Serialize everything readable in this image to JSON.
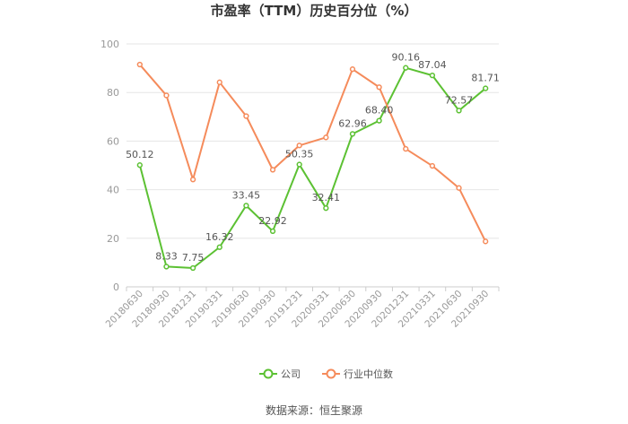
{
  "chart_data": {
    "type": "line",
    "title": "市盈率（TTM）历史百分位（%）",
    "source": "数据来源：恒生聚源",
    "categories": [
      "20180630",
      "20180930",
      "20181231",
      "20190331",
      "20190630",
      "20190930",
      "20191231",
      "20200331",
      "20200630",
      "20200930",
      "20201231",
      "20210331",
      "20210630",
      "20210930"
    ],
    "ylim": [
      0,
      100
    ],
    "yticks": [
      0,
      20,
      40,
      60,
      80,
      100
    ],
    "grid": true,
    "legend_position": "bottom",
    "series": [
      {
        "name": "公司",
        "color": "#5cc133",
        "values": [
          50.12,
          8.33,
          7.75,
          16.32,
          33.45,
          22.92,
          50.35,
          32.41,
          62.96,
          68.4,
          90.16,
          87.04,
          72.57,
          81.71
        ],
        "labels": [
          "50.12",
          "8.33",
          "7.75",
          "16.32",
          "33.45",
          "22.92",
          "50.35",
          "32.41",
          "62.96",
          "68.40",
          "90.16",
          "87.04",
          "72.57",
          "81.71"
        ]
      },
      {
        "name": "行业中位数",
        "color": "#f58b5b",
        "values": [
          91.5,
          78.8,
          44.2,
          84.2,
          70.3,
          48.2,
          58.2,
          61.5,
          89.6,
          82.2,
          56.8,
          49.8,
          40.7,
          18.7
        ]
      }
    ]
  }
}
